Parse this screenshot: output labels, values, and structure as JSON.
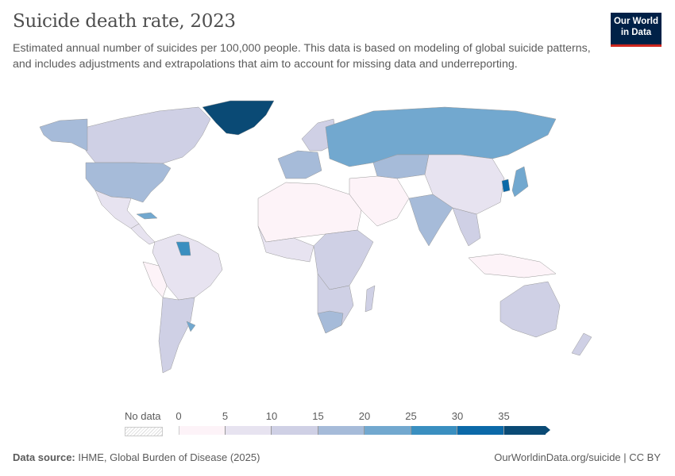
{
  "header": {
    "title": "Suicide death rate, 2023",
    "subtitle": "Estimated annual number of suicides per 100,000 people. This data is based on modeling of global suicide patterns, and includes adjustments and extrapolations that aim to account for missing data and underreporting."
  },
  "logo": {
    "line1": "Our World",
    "line2": "in Data"
  },
  "legend": {
    "no_data_label": "No data",
    "ticks": [
      "0",
      "5",
      "10",
      "15",
      "20",
      "25",
      "30",
      "35"
    ],
    "bins": [
      {
        "min": 0,
        "max": 5,
        "color": "#fdf3f8"
      },
      {
        "min": 5,
        "max": 10,
        "color": "#e7e3f0"
      },
      {
        "min": 10,
        "max": 15,
        "color": "#cfd0e5"
      },
      {
        "min": 15,
        "max": 20,
        "color": "#a6bbd9"
      },
      {
        "min": 20,
        "max": 25,
        "color": "#72a8cf"
      },
      {
        "min": 25,
        "max": 30,
        "color": "#3a8fc0"
      },
      {
        "min": 30,
        "max": 35,
        "color": "#0b69a8"
      },
      {
        "min": 35,
        "max": null,
        "color": "#0a4a75"
      }
    ]
  },
  "footer": {
    "source_label": "Data source:",
    "source": "IHME, Global Burden of Disease (2025)",
    "link": "OurWorldinData.org/suicide | CC BY"
  }
}
